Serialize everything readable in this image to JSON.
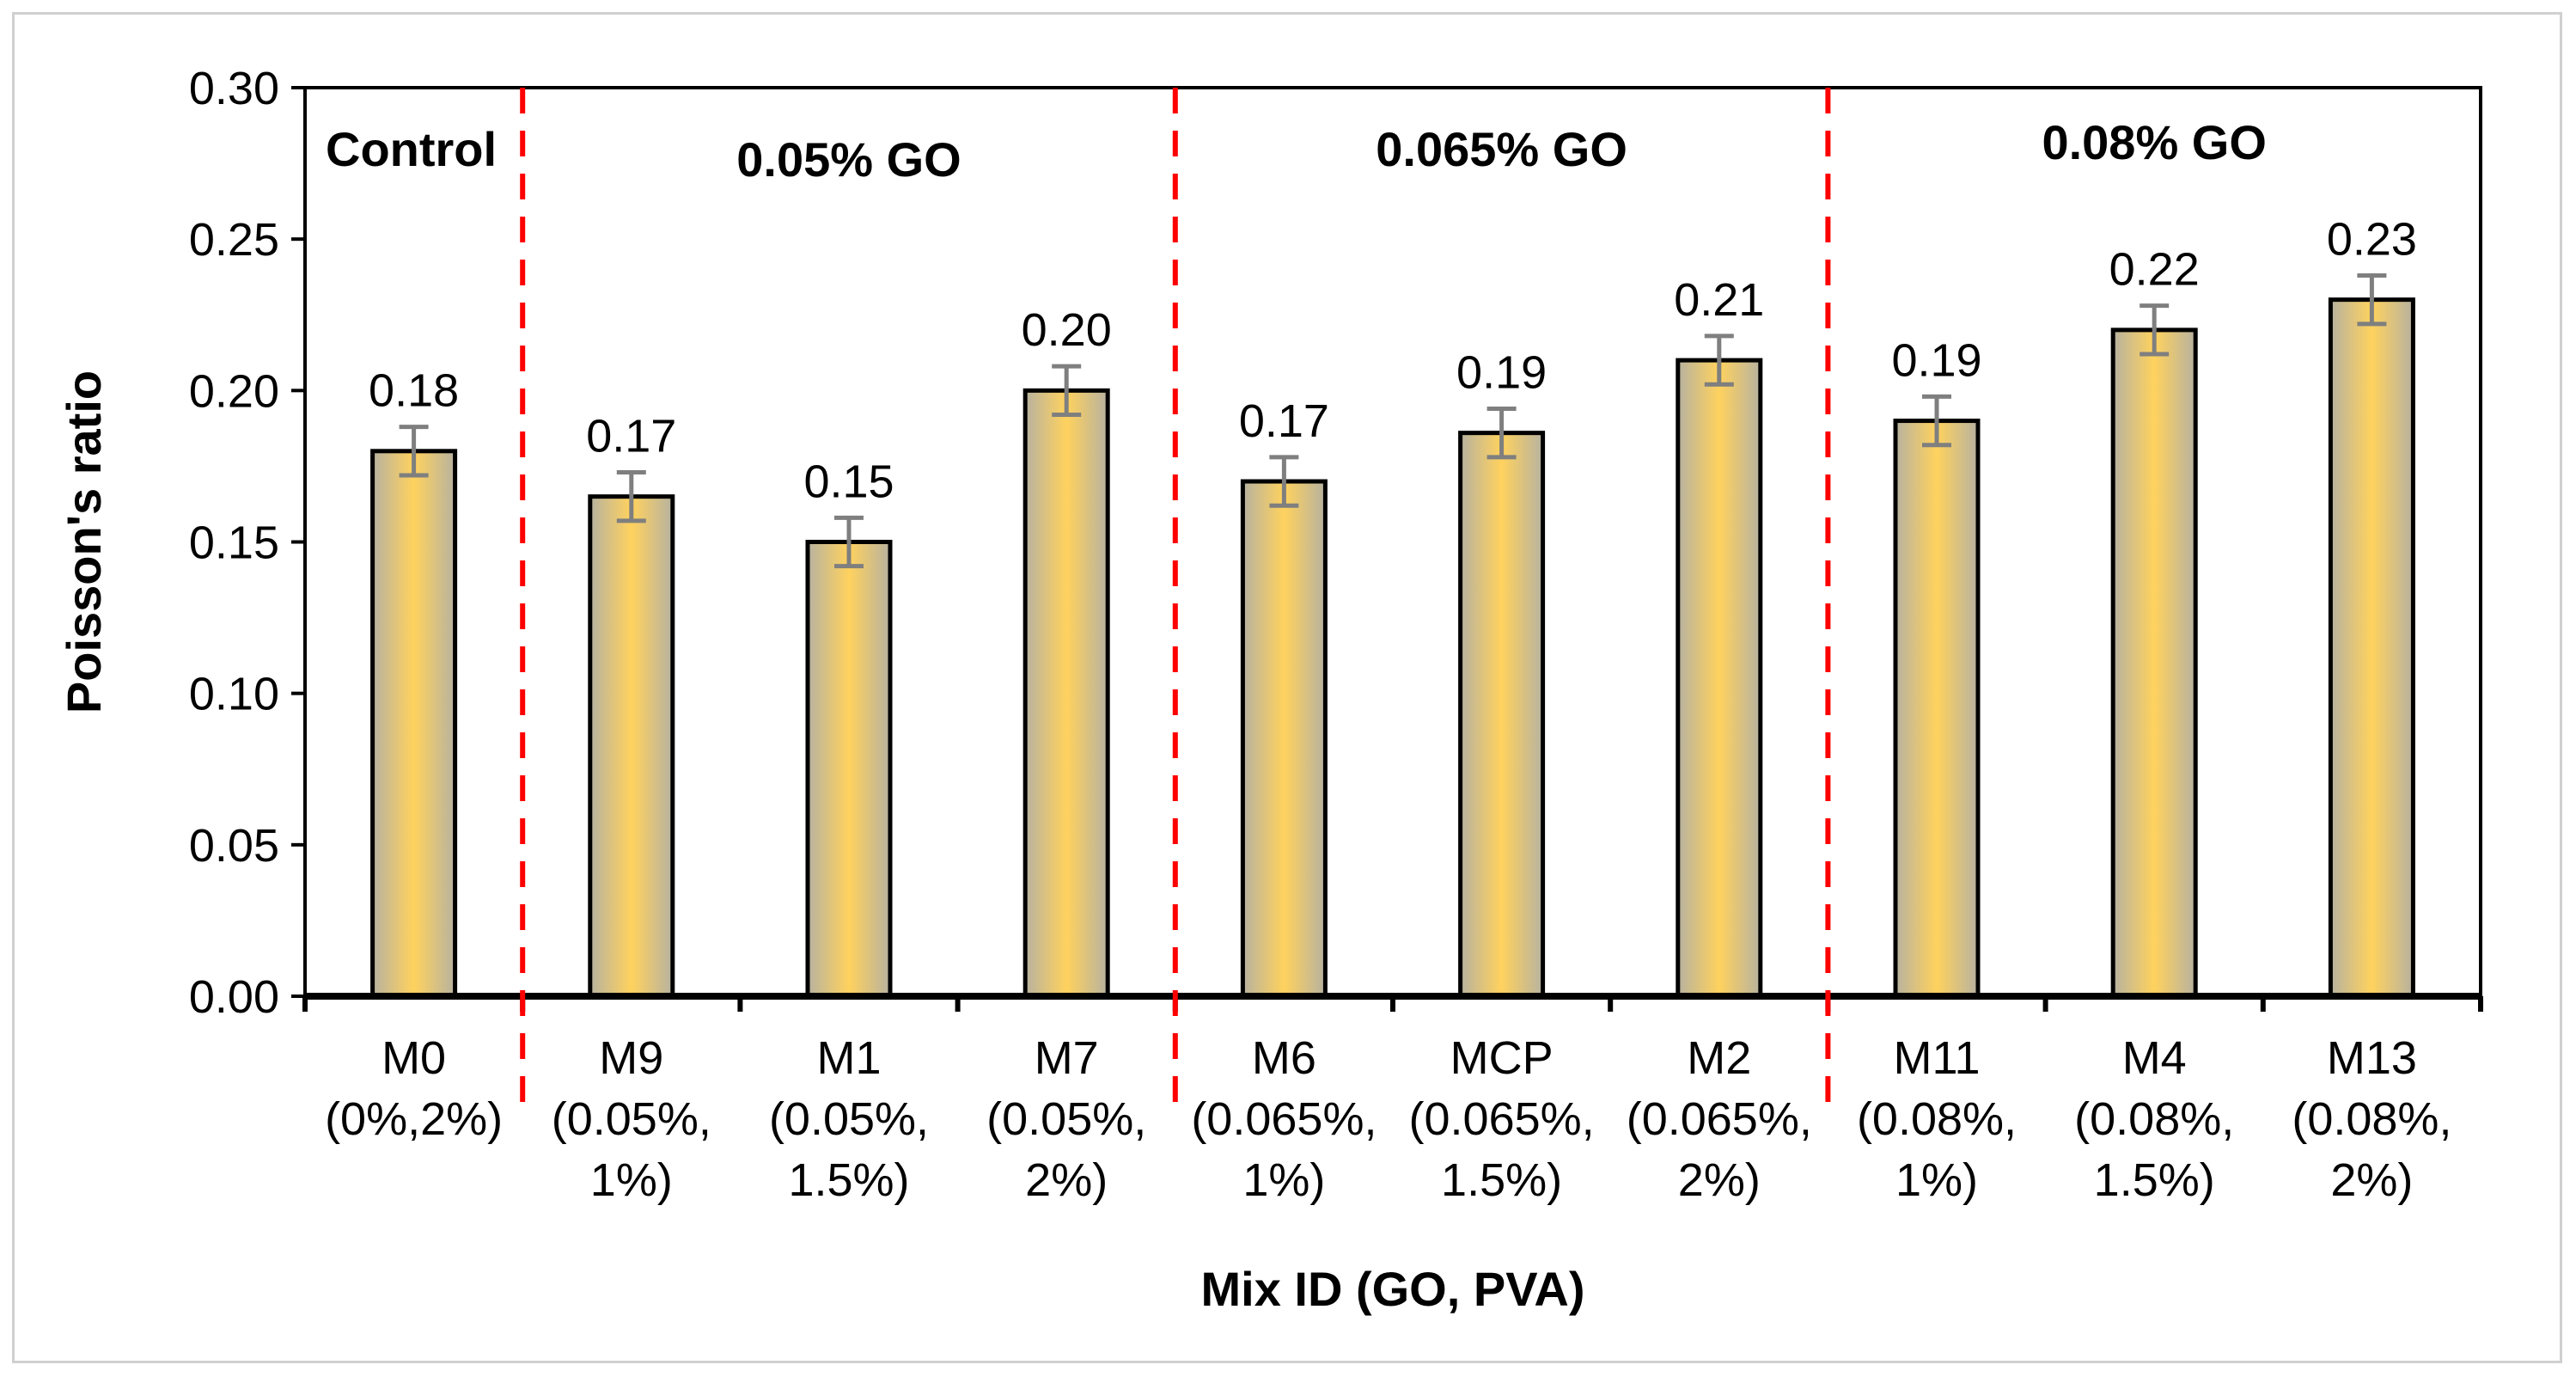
{
  "chart_data": {
    "type": "bar",
    "ylabel": "Poisson's ratio",
    "xlabel": "Mix ID (GO, PVA)",
    "ylim": [
      0,
      0.3
    ],
    "yticks": [
      "0.00",
      "0.05",
      "0.10",
      "0.15",
      "0.20",
      "0.25",
      "0.30"
    ],
    "categories": [
      {
        "line1": "M0",
        "line2": "(0%,2%)",
        "line3": ""
      },
      {
        "line1": "M9",
        "line2": "(0.05%,",
        "line3": "1%)"
      },
      {
        "line1": "M1",
        "line2": "(0.05%,",
        "line3": "1.5%)"
      },
      {
        "line1": "M7",
        "line2": "(0.05%,",
        "line3": "2%)"
      },
      {
        "line1": "M6",
        "line2": "(0.065%,",
        "line3": "1%)"
      },
      {
        "line1": "MCP",
        "line2": "(0.065%,",
        "line3": "1.5%)"
      },
      {
        "line1": "M2",
        "line2": "(0.065%,",
        "line3": "2%)"
      },
      {
        "line1": "M11",
        "line2": "(0.08%,",
        "line3": "1%)"
      },
      {
        "line1": "M4",
        "line2": "(0.08%,",
        "line3": "1.5%)"
      },
      {
        "line1": "M13",
        "line2": "(0.08%,",
        "line3": "2%)"
      }
    ],
    "values": [
      0.18,
      0.165,
      0.15,
      0.2,
      0.17,
      0.186,
      0.21,
      0.19,
      0.22,
      0.23
    ],
    "data_labels": [
      "0.18",
      "0.17",
      "0.15",
      "0.20",
      "0.17",
      "0.19",
      "0.21",
      "0.19",
      "0.22",
      "0.23"
    ],
    "error": 0.008,
    "groups": [
      {
        "label": "Control",
        "start": 0,
        "end": 0
      },
      {
        "label": "0.05% GO",
        "start": 1,
        "end": 3
      },
      {
        "label": "0.065% GO",
        "start": 4,
        "end": 6
      },
      {
        "label": "0.08% GO",
        "start": 7,
        "end": 9
      }
    ],
    "dividers_after": [
      0,
      3,
      6
    ],
    "colors": {
      "bar_center": "#ffd25e",
      "bar_edge": "#b7b2a0",
      "bar_stroke": "#000000",
      "error_bar": "#7f7f7f",
      "divider": "#ff0000"
    }
  }
}
